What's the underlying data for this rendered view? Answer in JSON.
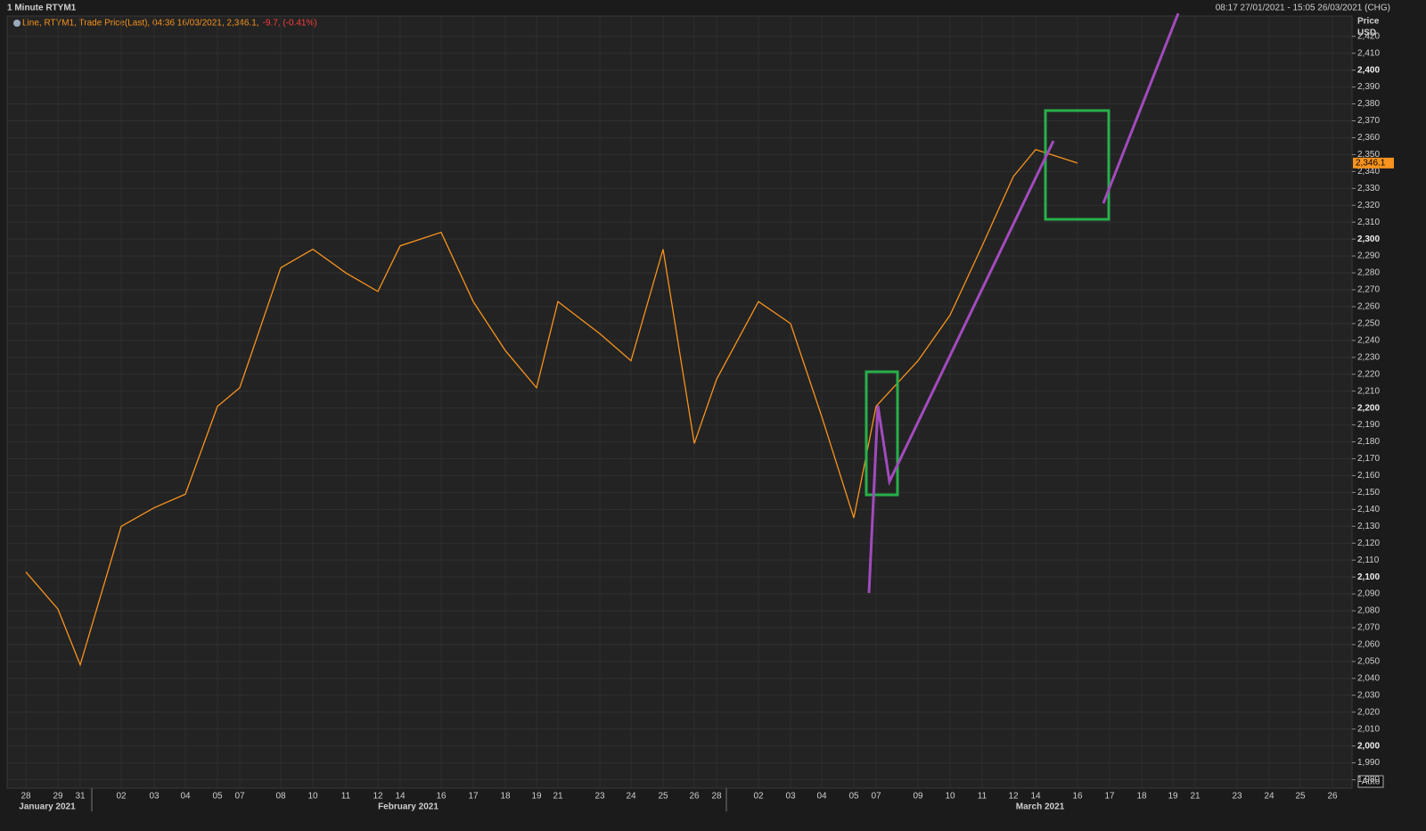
{
  "chart_data": {
    "type": "line",
    "title": "1 Minute RTYM1",
    "range_text": "08:17 27/01/2021 - 15:05 26/03/2021 (CHG)",
    "legend_text": "Line, RTYM1, Trade Price(Last), 04:36 16/03/2021, 2,346.1,",
    "legend_change": "-9.7, (-0.41%)",
    "y_title": "Price",
    "y_unit": "USD",
    "last_label": "2,346.1",
    "auto_label": "Auto",
    "months": [
      "January 2021",
      "February 2021",
      "March 2021"
    ],
    "categories": [
      "28",
      "29",
      "31",
      "02",
      "03",
      "04",
      "05",
      "07",
      "08",
      "10",
      "11",
      "12",
      "14",
      "16",
      "17",
      "18",
      "19",
      "21",
      "23",
      "24",
      "25",
      "26",
      "28",
      "02",
      "03",
      "04",
      "05",
      "07",
      "09",
      "10",
      "11",
      "12",
      "14",
      "16",
      "17",
      "18",
      "19",
      "21",
      "23",
      "24",
      "25",
      "26"
    ],
    "values": [
      2103,
      2081,
      2048,
      2130,
      2141,
      2149,
      2201,
      2212,
      2283,
      2294,
      2280,
      2269,
      2296,
      2304,
      2263,
      2234,
      2212,
      2263,
      2244,
      2228,
      2294,
      2179,
      2217,
      2263,
      2250,
      2195,
      2135,
      2201,
      2228,
      2255,
      2296,
      2337,
      2353,
      2345,
      null,
      null,
      null,
      null,
      null,
      null,
      null,
      null
    ],
    "color": "#f7931e",
    "grid": true,
    "ylim": [
      1975,
      2432
    ],
    "yticks": [
      {
        "value": 1980,
        "label": "1,980"
      },
      {
        "value": 1990,
        "label": "1,990"
      },
      {
        "value": 2000,
        "label": "2,000"
      },
      {
        "value": 2010,
        "label": "2,010"
      },
      {
        "value": 2020,
        "label": "2,020"
      },
      {
        "value": 2030,
        "label": "2,030"
      },
      {
        "value": 2040,
        "label": "2,040"
      },
      {
        "value": 2050,
        "label": "2,050"
      },
      {
        "value": 2060,
        "label": "2,060"
      },
      {
        "value": 2070,
        "label": "2,070"
      },
      {
        "value": 2080,
        "label": "2,080"
      },
      {
        "value": 2090,
        "label": "2,090"
      },
      {
        "value": 2100,
        "label": "2,100"
      },
      {
        "value": 2110,
        "label": "2,110"
      },
      {
        "value": 2120,
        "label": "2,120"
      },
      {
        "value": 2130,
        "label": "2,130"
      },
      {
        "value": 2140,
        "label": "2,140"
      },
      {
        "value": 2150,
        "label": "2,150"
      },
      {
        "value": 2160,
        "label": "2,160"
      },
      {
        "value": 2170,
        "label": "2,170"
      },
      {
        "value": 2180,
        "label": "2,180"
      },
      {
        "value": 2190,
        "label": "2,190"
      },
      {
        "value": 2200,
        "label": "2,200"
      },
      {
        "value": 2210,
        "label": "2,210"
      },
      {
        "value": 2220,
        "label": "2,220"
      },
      {
        "value": 2230,
        "label": "2,230"
      },
      {
        "value": 2240,
        "label": "2,240"
      },
      {
        "value": 2250,
        "label": "2,250"
      },
      {
        "value": 2260,
        "label": "2,260"
      },
      {
        "value": 2270,
        "label": "2,270"
      },
      {
        "value": 2280,
        "label": "2,280"
      },
      {
        "value": 2290,
        "label": "2,290"
      },
      {
        "value": 2300,
        "label": "2,300"
      },
      {
        "value": 2310,
        "label": "2,310"
      },
      {
        "value": 2320,
        "label": "2,320"
      },
      {
        "value": 2330,
        "label": "2,330"
      },
      {
        "value": 2340,
        "label": "2,340"
      },
      {
        "value": 2350,
        "label": "2,350"
      },
      {
        "value": 2360,
        "label": "2,360"
      },
      {
        "value": 2370,
        "label": "2,370"
      },
      {
        "value": 2380,
        "label": "2,380"
      },
      {
        "value": 2390,
        "label": "2,390"
      },
      {
        "value": 2400,
        "label": "2,400"
      },
      {
        "value": 2410,
        "label": "2,410"
      },
      {
        "value": 2420,
        "label": "2,420"
      }
    ]
  }
}
